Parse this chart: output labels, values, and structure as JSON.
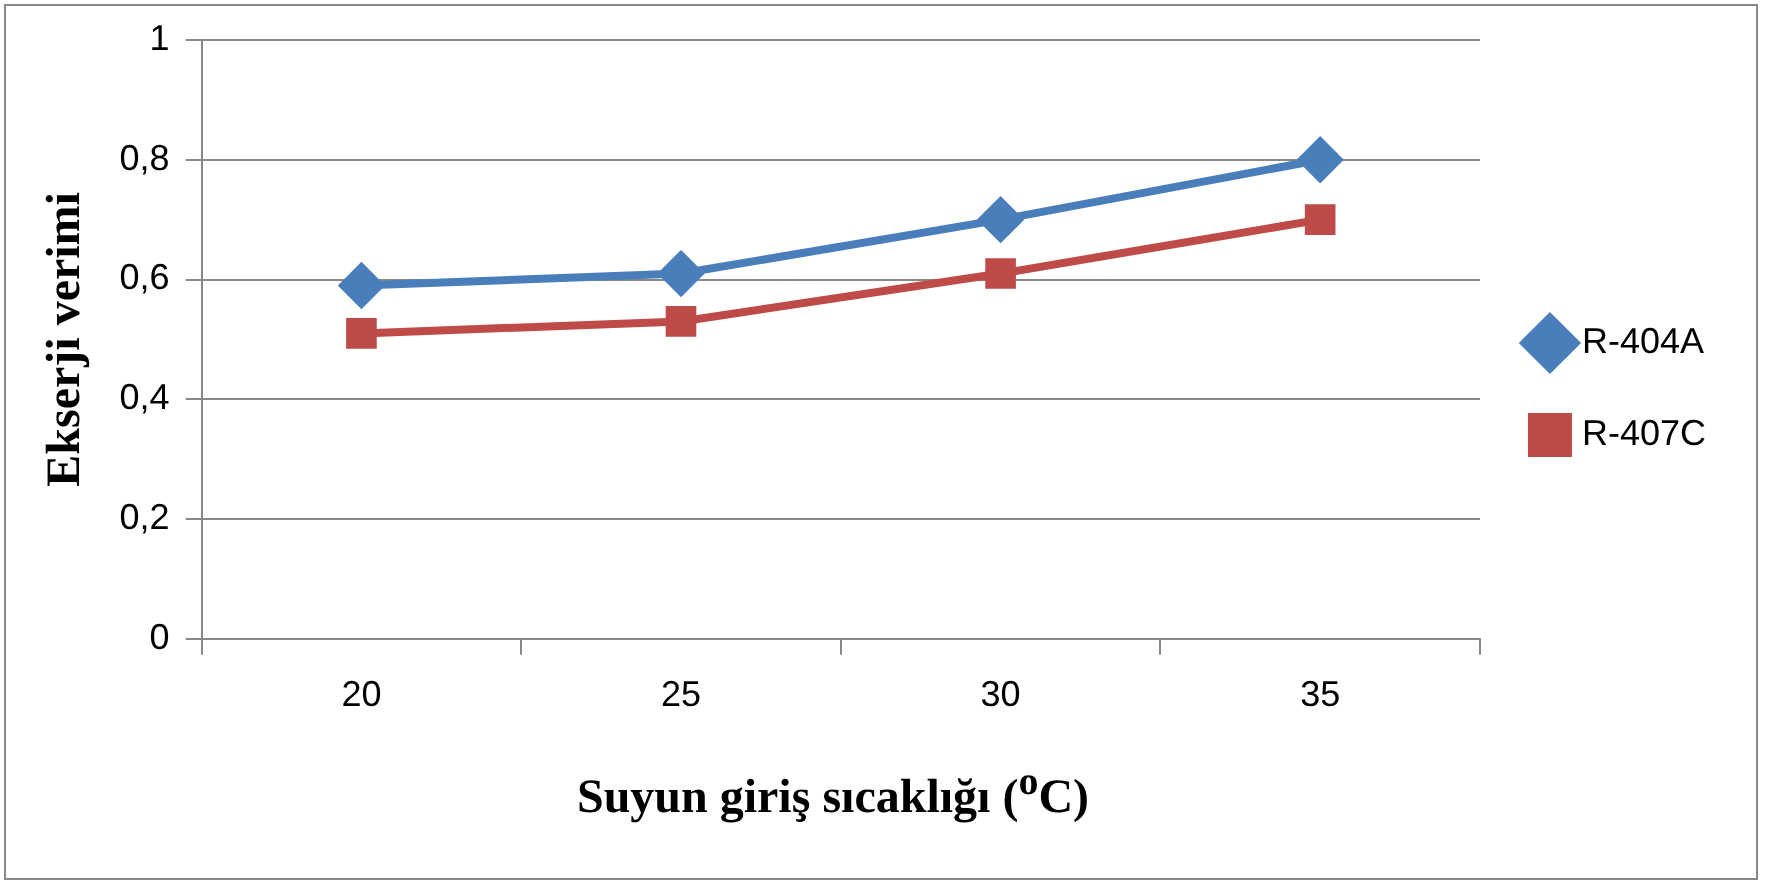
{
  "chart_data": {
    "type": "line",
    "xlabel": "Suyun giriş sıcaklığı ($^{o}$C)",
    "ylabel": "Ekserji verimi",
    "categories": [
      "20",
      "25",
      "30",
      "35"
    ],
    "series": [
      {
        "name": "R-404A",
        "color": "#4a7ebb",
        "marker": "diamond",
        "values": [
          0.59,
          0.61,
          0.7,
          0.8
        ]
      },
      {
        "name": "R-407C",
        "color": "#be4b48",
        "marker": "square",
        "values": [
          0.51,
          0.53,
          0.61,
          0.7
        ]
      }
    ],
    "ylim": [
      0,
      1
    ],
    "yticks": [
      0,
      {
        "value": 0.2,
        "label": "0,2"
      },
      {
        "value": 0.4,
        "label": "0,4"
      },
      {
        "value": 0.6,
        "label": "0,6"
      },
      {
        "value": 0.8,
        "label": "0,8"
      },
      1
    ],
    "grid": "y",
    "legend": "right",
    "line_style": "solid"
  }
}
